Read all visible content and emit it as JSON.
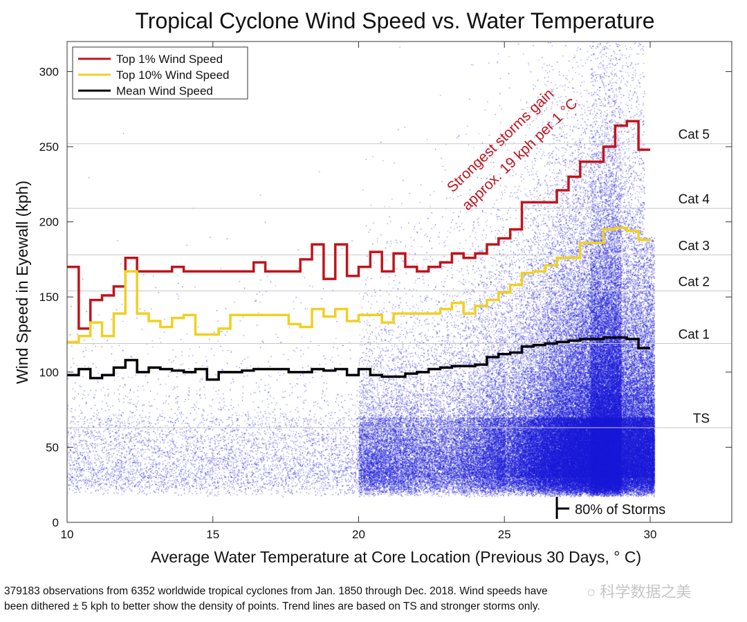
{
  "chart_data": {
    "type": "scatter",
    "title": "Tropical Cyclone Wind Speed vs. Water Temperature",
    "xlabel": "Average Water Temperature at Core Location (Previous 30 Days, ° C)",
    "ylabel": "Wind Speed in Eyewall (kph)",
    "xlim": [
      10,
      32.8
    ],
    "ylim": [
      0,
      320
    ],
    "xticks": [
      10,
      15,
      20,
      25,
      30
    ],
    "yticks": [
      0,
      50,
      100,
      150,
      200,
      250,
      300
    ],
    "grid": false,
    "legend_position": "top-left",
    "scatter_color": "#1a1ad8",
    "step_bins": {
      "start": 10,
      "width": 0.4,
      "count": 50
    },
    "series": [
      {
        "name": "Top 1% Wind Speed",
        "color": "#c0141c",
        "values": [
          170,
          129,
          148,
          151,
          157,
          176,
          167,
          167,
          167,
          170,
          167,
          167,
          167,
          167,
          167,
          167,
          173,
          167,
          167,
          167,
          175,
          185,
          162,
          185,
          164,
          170,
          180,
          167,
          179,
          170,
          167,
          170,
          173,
          179,
          176,
          179,
          185,
          189,
          195,
          213,
          213,
          213,
          221,
          230,
          240,
          240,
          250,
          264,
          267,
          248
        ]
      },
      {
        "name": "Top 10% Wind Speed",
        "color": "#f0d020",
        "values": [
          120,
          124,
          133,
          124,
          139,
          167,
          139,
          134,
          130,
          136,
          138,
          125,
          125,
          129,
          138,
          138,
          138,
          138,
          138,
          132,
          130,
          142,
          137,
          142,
          134,
          138,
          138,
          133,
          139,
          139,
          139,
          139,
          142,
          146,
          139,
          144,
          148,
          153,
          158,
          166,
          167,
          171,
          176,
          176,
          186,
          186,
          195,
          196,
          194,
          188
        ]
      },
      {
        "name": "Mean Wind Speed",
        "color": "#000000",
        "values": [
          98,
          102,
          96,
          98,
          103,
          108,
          100,
          103,
          102,
          101,
          100,
          102,
          95,
          100,
          100,
          101,
          102,
          102,
          102,
          100,
          100,
          102,
          101,
          102,
          98,
          102,
          98,
          97,
          97,
          99,
          100,
          102,
          103,
          104,
          104,
          105,
          110,
          112,
          113,
          117,
          118,
          119,
          120,
          121,
          122,
          122,
          123,
          123,
          122,
          116
        ]
      }
    ],
    "reference_lines": [
      {
        "label": "Cat 5",
        "value": 252
      },
      {
        "label": "Cat 4",
        "value": 209
      },
      {
        "label": "Cat 3",
        "value": 178
      },
      {
        "label": "Cat 2",
        "value": 154
      },
      {
        "label": "Cat 1",
        "value": 119
      },
      {
        "label": "TS",
        "value": 63
      }
    ],
    "annotations": [
      {
        "text_line1": "Strongest storms gain",
        "text_line2": "approx. 19 kph per 1 °C",
        "color": "#c0141c"
      },
      {
        "text": "80% of Storms",
        "x": 26.8
      }
    ]
  },
  "footnote": {
    "line1": "379183 observations from 6352 worldwide tropical cyclones from Jan. 1850 through Dec. 2018.  Wind speeds have",
    "line2": "been dithered ± 5 kph to better show the density of points.  Trend lines are based on TS and stronger storms only."
  },
  "watermark": "科学数据之美"
}
